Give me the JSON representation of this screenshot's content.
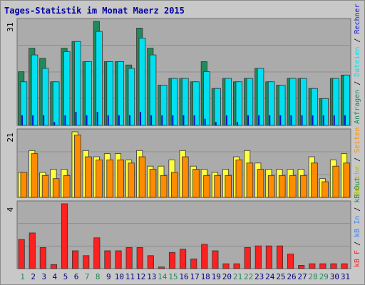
{
  "title": "Tages-Statistik im Monat Maerz 2015",
  "colors": {
    "background": "#c8c8c8",
    "panel": "#ababab",
    "title": "#0000a0",
    "hits": "#1f8a5a",
    "files": "#00e0f0",
    "sites": "#1010c8",
    "visits": "#ffff40",
    "pages": "#ff8c00",
    "kbytes": "#ff2020",
    "axis_label_default": "#000080",
    "axis_label_weekend": "#1f8a5a"
  },
  "chart_data": [
    {
      "type": "bar",
      "panel": "top",
      "y_max_label": "31",
      "ylim": [
        0,
        31
      ],
      "categories": [
        "1",
        "2",
        "3",
        "4",
        "5",
        "6",
        "7",
        "8",
        "9",
        "10",
        "11",
        "12",
        "13",
        "14",
        "15",
        "16",
        "17",
        "18",
        "19",
        "20",
        "21",
        "22",
        "23",
        "24",
        "25",
        "26",
        "27",
        "28",
        "29",
        "30",
        "31"
      ],
      "series": [
        {
          "name": "Anfragen",
          "color": "#1f8a5a",
          "values": [
            16,
            23,
            20,
            13,
            23,
            25,
            19,
            31,
            19,
            19,
            18,
            29,
            23,
            12,
            14,
            14,
            13,
            19,
            11,
            14,
            13,
            14,
            17,
            13,
            12,
            14,
            14,
            11,
            8,
            14,
            15
          ]
        },
        {
          "name": "Dateien",
          "color": "#00e0f0",
          "values": [
            13,
            21,
            17,
            13,
            22,
            25,
            19,
            28,
            19,
            19,
            17,
            26,
            21,
            12,
            14,
            14,
            13,
            16,
            11,
            14,
            13,
            14,
            17,
            13,
            12,
            14,
            14,
            11,
            8,
            14,
            15
          ]
        },
        {
          "name": "Rechner (IP-Adressen)",
          "color": "#1010c8",
          "values": [
            3,
            3,
            3,
            1,
            3,
            4,
            3,
            4,
            3,
            3,
            3,
            4,
            3,
            3,
            3,
            3,
            3,
            2,
            1,
            3,
            1,
            3,
            3,
            3,
            3,
            3,
            3,
            3,
            3,
            3,
            3
          ]
        }
      ],
      "legend": [
        {
          "text": "Anfragen",
          "color": "#1f8a5a"
        },
        {
          "text": " / ",
          "color": "#000000"
        },
        {
          "text": "Dateien",
          "color": "#00e0f0"
        },
        {
          "text": " / ",
          "color": "#000000"
        },
        {
          "text": "Rechner (IP-Adressen)",
          "color": "#1010c8"
        }
      ]
    },
    {
      "type": "bar",
      "panel": "middle",
      "y_max_label": "21",
      "ylim": [
        0,
        21
      ],
      "categories": [
        "1",
        "2",
        "3",
        "4",
        "5",
        "6",
        "7",
        "8",
        "9",
        "10",
        "11",
        "12",
        "13",
        "14",
        "15",
        "16",
        "17",
        "18",
        "19",
        "20",
        "21",
        "22",
        "23",
        "24",
        "25",
        "26",
        "27",
        "28",
        "29",
        "30",
        "31"
      ],
      "series": [
        {
          "name": "Besuche",
          "color": "#ffff40",
          "values": [
            8,
            15,
            8,
            9,
            9,
            21,
            15,
            13,
            14,
            14,
            12,
            15,
            10,
            10,
            12,
            15,
            10,
            9,
            8,
            9,
            13,
            15,
            11,
            9,
            9,
            9,
            9,
            13,
            6,
            12,
            14
          ]
        },
        {
          "name": "Seiten",
          "color": "#ff8c00",
          "values": [
            8,
            14,
            7,
            6,
            7,
            20,
            13,
            12,
            12,
            12,
            11,
            13,
            9,
            7,
            8,
            13,
            9,
            7,
            7,
            7,
            12,
            11,
            9,
            7,
            7,
            7,
            7,
            11,
            5,
            10,
            11
          ]
        }
      ],
      "legend": [
        {
          "text": "Besuche",
          "color": "#b8b800"
        },
        {
          "text": " / ",
          "color": "#000000"
        },
        {
          "text": "Seiten",
          "color": "#ff8c00"
        }
      ]
    },
    {
      "type": "bar",
      "panel": "bottom",
      "y_max_label": "4",
      "ylim": [
        0,
        4
      ],
      "categories": [
        "1",
        "2",
        "3",
        "4",
        "5",
        "6",
        "7",
        "8",
        "9",
        "10",
        "11",
        "12",
        "13",
        "14",
        "15",
        "16",
        "17",
        "18",
        "19",
        "20",
        "21",
        "22",
        "23",
        "24",
        "25",
        "26",
        "27",
        "28",
        "29",
        "30",
        "31"
      ],
      "series": [
        {
          "name": "kB F",
          "color": "#ff2020",
          "values": [
            1.8,
            2.2,
            1.3,
            0.25,
            4.0,
            1.1,
            0.8,
            1.9,
            1.1,
            1.1,
            1.3,
            1.3,
            0.8,
            0.1,
            1.0,
            1.2,
            0.6,
            1.5,
            1.1,
            0.3,
            0.3,
            1.3,
            1.4,
            1.4,
            1.4,
            0.9,
            0.2,
            0.3,
            0.3,
            0.3,
            0.3
          ]
        }
      ],
      "legend": [
        {
          "text": "kB F",
          "color": "#ff2020"
        },
        {
          "text": " / ",
          "color": "#000000"
        },
        {
          "text": "kB In",
          "color": "#3080ff"
        },
        {
          "text": " / ",
          "color": "#000000"
        },
        {
          "text": "kB Out",
          "color": "#1f8a5a"
        }
      ]
    }
  ],
  "x_axis": {
    "labels": [
      "1",
      "2",
      "3",
      "4",
      "5",
      "6",
      "7",
      "8",
      "9",
      "10",
      "11",
      "12",
      "13",
      "14",
      "15",
      "16",
      "17",
      "18",
      "19",
      "20",
      "21",
      "22",
      "23",
      "24",
      "25",
      "26",
      "27",
      "28",
      "29",
      "30",
      "31"
    ],
    "weekend_days": [
      "1",
      "7",
      "8",
      "14",
      "15",
      "21",
      "22",
      "28",
      "29"
    ]
  }
}
